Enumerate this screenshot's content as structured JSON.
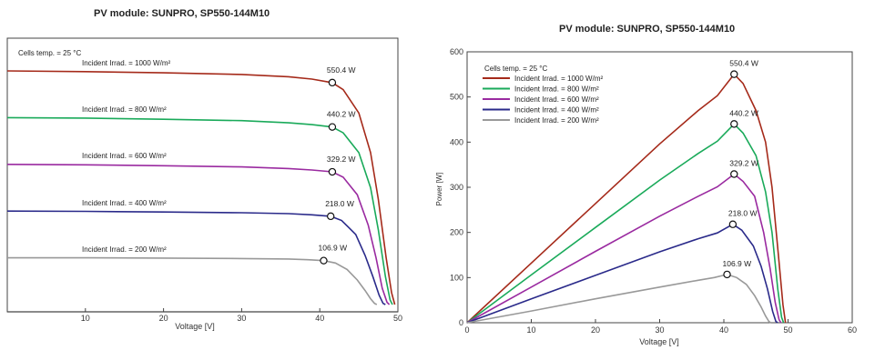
{
  "chart_data": [
    {
      "type": "line",
      "title": "PV module:  SUNPRO,  SP550-144M10",
      "xlabel": "Voltage [V]",
      "ylabel": "",
      "xlim": [
        0,
        50
      ],
      "xticks": [
        10,
        20,
        30,
        40,
        50
      ],
      "annotation": "Cells temp. = 25 °C",
      "series": [
        {
          "name": "Incident Irrad. = 1000 W/m²",
          "color": "#a52a1a",
          "mpp_label": "550.4 W",
          "mpp": {
            "voltage": 41.6
          },
          "x": [
            0,
            10,
            20,
            30,
            36,
            39,
            41.6,
            43,
            45,
            46.5,
            47.5,
            48.5,
            49.2,
            49.6
          ],
          "y": [
            1.0,
            0.997,
            0.992,
            0.985,
            0.975,
            0.965,
            0.95,
            0.92,
            0.82,
            0.65,
            0.45,
            0.2,
            0.05,
            0
          ]
        },
        {
          "name": "Incident Irrad. = 800 W/m²",
          "color": "#1aaa5a",
          "mpp_label": "440.2 W",
          "mpp": {
            "voltage": 41.6
          },
          "x": [
            0,
            10,
            20,
            30,
            36,
            39,
            41.6,
            43,
            45,
            46.5,
            47.5,
            48.4,
            49.0,
            49.3
          ],
          "y": [
            0.8,
            0.798,
            0.793,
            0.787,
            0.778,
            0.77,
            0.76,
            0.735,
            0.65,
            0.5,
            0.32,
            0.12,
            0.02,
            0
          ]
        },
        {
          "name": "Incident Irrad. = 600 W/m²",
          "color": "#9a2aa0",
          "mpp_label": "329.2 W",
          "mpp": {
            "voltage": 41.6
          },
          "x": [
            0,
            10,
            20,
            30,
            36,
            39,
            41.6,
            43,
            44.8,
            46.2,
            47.2,
            48.0,
            48.6,
            48.9
          ],
          "y": [
            0.6,
            0.598,
            0.594,
            0.589,
            0.582,
            0.576,
            0.568,
            0.545,
            0.47,
            0.34,
            0.2,
            0.07,
            0.01,
            0
          ]
        },
        {
          "name": "Incident Irrad. = 400 W/m²",
          "color": "#2a2a8a",
          "mpp_label": "218.0 W",
          "mpp": {
            "voltage": 41.4
          },
          "x": [
            0,
            10,
            20,
            30,
            36,
            39,
            41.4,
            42.8,
            44.6,
            45.8,
            46.8,
            47.6,
            48.1,
            48.4
          ],
          "y": [
            0.4,
            0.399,
            0.396,
            0.393,
            0.389,
            0.384,
            0.378,
            0.36,
            0.3,
            0.21,
            0.12,
            0.04,
            0.005,
            0
          ]
        },
        {
          "name": "Incident Irrad. = 200 W/m²",
          "color": "#999999",
          "mpp_label": "106.9 W",
          "mpp": {
            "voltage": 40.5
          },
          "x": [
            0,
            10,
            20,
            30,
            36,
            38.5,
            40.5,
            42,
            43.5,
            44.8,
            45.8,
            46.5,
            47.0,
            47.3
          ],
          "y": [
            0.2,
            0.2,
            0.199,
            0.197,
            0.195,
            0.192,
            0.188,
            0.178,
            0.15,
            0.105,
            0.06,
            0.025,
            0.005,
            0
          ]
        }
      ]
    },
    {
      "type": "line",
      "title": "PV module:  SUNPRO,  SP550-144M10",
      "xlabel": "Voltage [V]",
      "ylabel": "Power [W]",
      "xlim": [
        0,
        60
      ],
      "ylim": [
        0,
        600
      ],
      "xticks": [
        0,
        10,
        20,
        30,
        40,
        50,
        60
      ],
      "yticks": [
        0,
        100,
        200,
        300,
        400,
        500,
        600
      ],
      "annotation": "Cells temp. = 25 °C",
      "legend_position": "top-left",
      "series": [
        {
          "name": "Incident Irrad. = 1000 W/m²",
          "color": "#a52a1a",
          "mpp_label": "550.4 W",
          "mpp": {
            "voltage": 41.6,
            "power": 550.4
          },
          "x": [
            0,
            10,
            20,
            30,
            36,
            39,
            41.6,
            43,
            45,
            46.5,
            47.5,
            48.5,
            49.2,
            49.6
          ],
          "y": [
            0,
            132,
            264,
            396,
            470,
            503,
            550.4,
            530,
            470,
            400,
            300,
            150,
            40,
            0
          ]
        },
        {
          "name": "Incident Irrad. = 800 W/m²",
          "color": "#1aaa5a",
          "mpp_label": "440.2 W",
          "mpp": {
            "voltage": 41.6,
            "power": 440.2
          },
          "x": [
            0,
            10,
            20,
            30,
            36,
            39,
            41.6,
            43,
            45,
            46.5,
            47.5,
            48.4,
            49.0,
            49.3
          ],
          "y": [
            0,
            106,
            211,
            316,
            375,
            402,
            440.2,
            420,
            370,
            290,
            200,
            75,
            12,
            0
          ]
        },
        {
          "name": "Incident Irrad. = 600 W/m²",
          "color": "#9a2aa0",
          "mpp_label": "329.2 W",
          "mpp": {
            "voltage": 41.6,
            "power": 329.2
          },
          "x": [
            0,
            10,
            20,
            30,
            36,
            39,
            41.6,
            43,
            44.8,
            46.2,
            47.2,
            48.0,
            48.6,
            48.9
          ],
          "y": [
            0,
            79,
            158,
            236,
            280,
            301,
            329.2,
            313,
            280,
            200,
            120,
            45,
            7,
            0
          ]
        },
        {
          "name": "Incident Irrad. = 400 W/m²",
          "color": "#2a2a8a",
          "mpp_label": "218.0 W",
          "mpp": {
            "voltage": 41.4,
            "power": 218.0
          },
          "x": [
            0,
            10,
            20,
            30,
            36,
            39,
            41.4,
            42.8,
            44.6,
            45.8,
            46.8,
            47.6,
            48.1,
            48.4
          ],
          "y": [
            0,
            53,
            105,
            157,
            186,
            199,
            218.0,
            205,
            170,
            125,
            75,
            25,
            3,
            0
          ]
        },
        {
          "name": "Incident Irrad. = 200 W/m²",
          "color": "#999999",
          "mpp_label": "106.9 W",
          "mpp": {
            "voltage": 40.5,
            "power": 106.9
          },
          "x": [
            0,
            10,
            20,
            30,
            36,
            38.5,
            40.5,
            42,
            43.5,
            44.8,
            45.8,
            46.5,
            47.0,
            47.3
          ],
          "y": [
            0,
            26,
            53,
            79,
            94,
            100,
            106.9,
            100,
            85,
            60,
            35,
            15,
            3,
            0
          ]
        }
      ]
    }
  ]
}
